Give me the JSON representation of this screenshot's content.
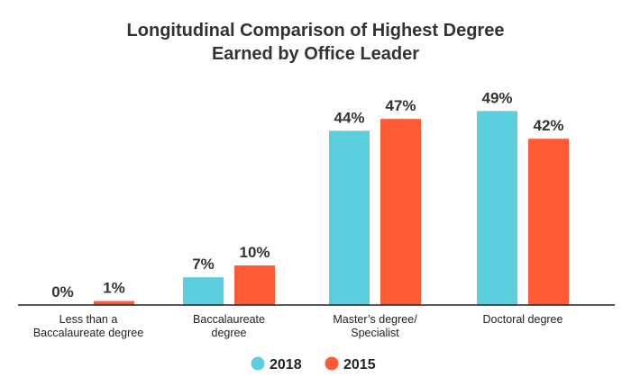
{
  "chart_data": {
    "type": "bar",
    "title_lines": [
      "Longitudinal Comparison of Highest Degree",
      "Earned by Office Leader"
    ],
    "categories": [
      [
        "Less than a",
        "Baccalaureate degree"
      ],
      [
        "Baccalaureate",
        "degree"
      ],
      [
        "Master’s degree/",
        "Specialist"
      ],
      [
        "Doctoral degree"
      ]
    ],
    "series": [
      {
        "name": "2018",
        "color": "#5bcfde",
        "values": [
          0,
          7,
          44,
          49
        ],
        "labels": [
          "0%",
          "7%",
          "44%",
          "49%"
        ]
      },
      {
        "name": "2015",
        "color": "#ff5a36",
        "values": [
          1,
          10,
          47,
          42
        ],
        "labels": [
          "1%",
          "10%",
          "47%",
          "42%"
        ]
      }
    ],
    "ylim": [
      0,
      50
    ],
    "legend_position": "bottom-center",
    "grid": false
  }
}
